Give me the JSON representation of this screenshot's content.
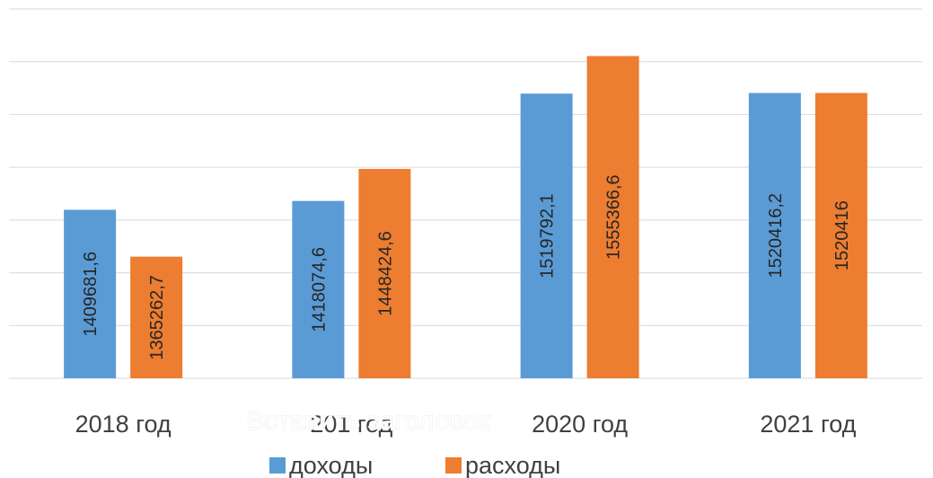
{
  "chart_data": {
    "type": "bar",
    "title": "",
    "xlabel": "",
    "ylabel": "",
    "categories": [
      "2018 год",
      "201 год",
      "2020 год",
      "2021 год"
    ],
    "series": [
      {
        "name": "доходы",
        "color": "#5B9BD5",
        "values": [
          1409681.6,
          1418074.6,
          1519792.1,
          1520416.2
        ],
        "labels": [
          "1409681,6",
          "1418074,6",
          "1519792,1",
          "1520416,2"
        ]
      },
      {
        "name": "расходы",
        "color": "#ED7D31",
        "values": [
          1365262.7,
          1448424.6,
          1555366.6,
          1520416
        ],
        "labels": [
          "1365262,7",
          "1448424,6",
          "1555366,6",
          "1520416"
        ]
      }
    ],
    "ylim": [
      1250000,
      1600000
    ],
    "gridlines": true,
    "gridline_step": 50000,
    "axis_tick_labels_visible": false,
    "legend_position": "bottom",
    "watermark_text": "Вставить заголовок"
  }
}
